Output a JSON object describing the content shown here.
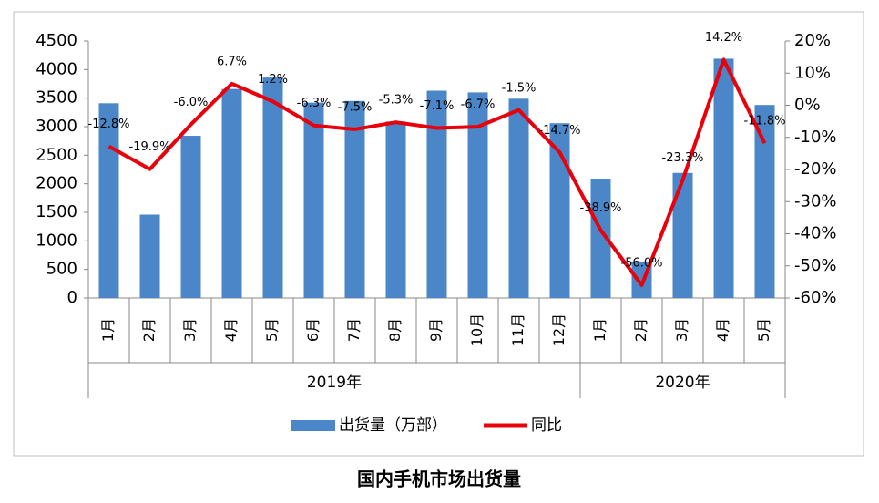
{
  "chart_data": {
    "type": "bar-line",
    "title": "国内手机市场出货量",
    "groups": [
      {
        "name": "2019年",
        "categories": [
          "1月",
          "2月",
          "3月",
          "4月",
          "5月",
          "6月",
          "7月",
          "8月",
          "9月",
          "10月",
          "11月",
          "12月"
        ]
      },
      {
        "name": "2020年",
        "categories": [
          "1月",
          "2月",
          "3月",
          "4月",
          "5月"
        ]
      }
    ],
    "series": [
      {
        "name": "出货量（万部）",
        "type": "bar",
        "color": "#4a86c8",
        "values": [
          3410,
          1460,
          2840,
          3660,
          3860,
          3420,
          3450,
          3090,
          3630,
          3600,
          3490,
          3060,
          2090,
          640,
          2190,
          4190,
          3380
        ]
      },
      {
        "name": "同比",
        "type": "line",
        "axis": "y2",
        "color": "#e8000b",
        "values": [
          -12.8,
          -19.9,
          -6.0,
          6.7,
          1.2,
          -6.3,
          -7.5,
          -5.3,
          -7.1,
          -6.7,
          -1.5,
          -14.7,
          -38.9,
          -56.0,
          -23.3,
          14.2,
          -11.8
        ],
        "value_labels": [
          "-12.8%",
          "-19.9%",
          "-6.0%",
          "6.7%",
          "1.2%",
          "-6.3%",
          "-7.5%",
          "-5.3%",
          "-7.1%",
          "-6.7%",
          "-1.5%",
          "-14.7%",
          "-38.9%",
          "-56.0%",
          "-23.3%",
          "14.2%",
          "-11.8%"
        ]
      }
    ],
    "ylim": [
      0,
      4500
    ],
    "yticks": [
      0,
      500,
      1000,
      1500,
      2000,
      2500,
      3000,
      3500,
      4000,
      4500
    ],
    "y2lim": [
      -60,
      20
    ],
    "y2ticks": [
      {
        "value": -60,
        "label": "-60%"
      },
      {
        "value": -50,
        "label": "-50%"
      },
      {
        "value": -40,
        "label": "-40%"
      },
      {
        "value": -30,
        "label": "-30%"
      },
      {
        "value": -20,
        "label": "-20%"
      },
      {
        "value": -10,
        "label": "-10%"
      },
      {
        "value": 0,
        "label": "0%"
      },
      {
        "value": 10,
        "label": "10%"
      },
      {
        "value": 20,
        "label": "20%"
      }
    ],
    "legend": "bottom"
  }
}
